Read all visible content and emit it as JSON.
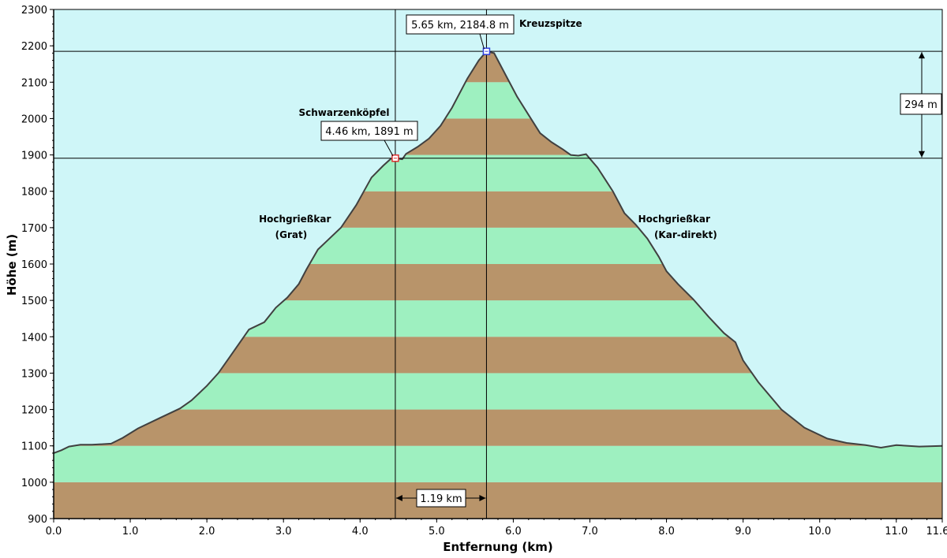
{
  "chart_data": {
    "type": "area",
    "xlabel": "Entfernung  (km)",
    "ylabel": "Höhe (m)",
    "xlim": [
      0,
      11.6
    ],
    "ylim": [
      900,
      2300
    ],
    "x_ticks": [
      0,
      1,
      2,
      3,
      4,
      5,
      6,
      7,
      8,
      9,
      10,
      11,
      11.6
    ],
    "x_tick_labels": [
      "0.0",
      "1.0",
      "2.0",
      "3.0",
      "4.0",
      "5.0",
      "6.0",
      "7.0",
      "8.0",
      "9.0",
      "10.0",
      "11.0",
      "11.6"
    ],
    "y_ticks": [
      900,
      1000,
      1100,
      1200,
      1300,
      1400,
      1500,
      1600,
      1700,
      1800,
      1900,
      2000,
      2100,
      2200,
      2300
    ],
    "band_colors": [
      "#b8946a",
      "#9ef0c0"
    ],
    "sky_color": "#cff6f8",
    "line_color": "#404040",
    "grid": false,
    "profile": {
      "x": [
        0.0,
        0.1,
        0.2,
        0.35,
        0.5,
        0.75,
        0.9,
        1.1,
        1.4,
        1.65,
        1.8,
        2.0,
        2.15,
        2.3,
        2.55,
        2.75,
        2.9,
        3.05,
        3.2,
        3.3,
        3.45,
        3.55,
        3.75,
        3.95,
        4.05,
        4.15,
        4.3,
        4.4,
        4.46,
        4.55,
        4.6,
        4.75,
        4.9,
        5.05,
        5.2,
        5.4,
        5.55,
        5.65,
        5.75,
        5.9,
        6.05,
        6.2,
        6.35,
        6.5,
        6.65,
        6.75,
        6.85,
        6.95,
        7.1,
        7.3,
        7.45,
        7.6,
        7.75,
        7.9,
        8.0,
        8.15,
        8.35,
        8.55,
        8.75,
        8.9,
        9.0,
        9.2,
        9.5,
        9.8,
        10.1,
        10.35,
        10.6,
        10.8,
        11.0,
        11.3,
        11.6
      ],
      "y": [
        1080,
        1088,
        1098,
        1103,
        1103,
        1106,
        1122,
        1148,
        1178,
        1203,
        1225,
        1265,
        1300,
        1345,
        1420,
        1440,
        1480,
        1508,
        1545,
        1585,
        1640,
        1660,
        1700,
        1762,
        1800,
        1838,
        1870,
        1889,
        1891,
        1888,
        1903,
        1922,
        1945,
        1980,
        2030,
        2110,
        2160,
        2184.8,
        2180,
        2120,
        2060,
        2010,
        1960,
        1935,
        1915,
        1900,
        1898,
        1902,
        1865,
        1800,
        1740,
        1708,
        1670,
        1620,
        1580,
        1545,
        1503,
        1455,
        1410,
        1385,
        1335,
        1275,
        1200,
        1150,
        1120,
        1108,
        1102,
        1095,
        1102,
        1098,
        1100
      ]
    },
    "markers": [
      {
        "x": 4.46,
        "y": 1891,
        "label": "4.46 km, 1891 m",
        "name": "Schwarzenköpfel",
        "color": "#e03030"
      },
      {
        "x": 5.65,
        "y": 2184.8,
        "label": "5.65 km, 2184.8 m",
        "name": "Kreuzspitze",
        "color": "#3040e0"
      }
    ],
    "annotations": [
      {
        "text": "Hochgrießkar",
        "x": 3.15,
        "y": 1715
      },
      {
        "text": "(Grat)",
        "x": 3.1,
        "y": 1672
      },
      {
        "text": "Hochgrießkar",
        "x": 8.1,
        "y": 1715
      },
      {
        "text": "(Kar-direkt)",
        "x": 8.25,
        "y": 1672
      }
    ],
    "distance_label": "1.19 km",
    "height_diff_label": "294 m"
  }
}
